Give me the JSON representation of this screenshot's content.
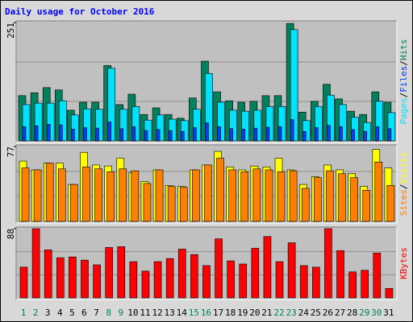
{
  "chart_data": {
    "type": "webalizer-daily",
    "title": "Daily usage for October 2016",
    "categories": [
      "1",
      "2",
      "3",
      "4",
      "5",
      "6",
      "7",
      "8",
      "9",
      "10",
      "11",
      "12",
      "13",
      "14",
      "15",
      "16",
      "17",
      "18",
      "19",
      "20",
      "21",
      "22",
      "23",
      "24",
      "25",
      "26",
      "27",
      "28",
      "29",
      "30",
      "31"
    ],
    "weekend_days": [
      0,
      1,
      7,
      8,
      14,
      15,
      21,
      22,
      28,
      29
    ],
    "weekend_color": "#00805c",
    "label_color": "#0000ff",
    "separator": "/",
    "panels": [
      {
        "ylim": [
          0,
          251
        ],
        "yticks": [
          251
        ],
        "series": [
          {
            "name": "Hits",
            "color": "#00805c",
            "values": [
              96,
              102,
              113,
              108,
              65,
              82,
              82,
              160,
              77,
              99,
              56,
              70,
              56,
              48,
              91,
              169,
              104,
              85,
              82,
              84,
              96,
              96,
              249,
              61,
              84,
              120,
              89,
              63,
              56,
              104,
              82
            ]
          },
          {
            "name": "Files",
            "color": "#0040ff",
            "values": [
              30,
              32,
              35,
              34,
              25,
              28,
              27,
              40,
              26,
              30,
              22,
              24,
              22,
              20,
              28,
              38,
              30,
              26,
              25,
              27,
              29,
              30,
              45,
              20,
              28,
              33,
              30,
              24,
              20,
              30,
              26
            ]
          },
          {
            "name": "Pages",
            "color": "#00e0ff",
            "values": [
              77,
              80,
              80,
              85,
              55,
              68,
              67,
              154,
              67,
              73,
              44,
              55,
              46,
              43,
              67,
              143,
              82,
              65,
              63,
              65,
              73,
              73,
              236,
              43,
              73,
              97,
              77,
              50,
              39,
              84,
              60
            ]
          }
        ]
      },
      {
        "ylim": [
          0,
          77
        ],
        "yticks": [
          77
        ],
        "series": [
          {
            "name": "Visits",
            "color": "#ffff00",
            "values": [
              62,
              53,
              60,
              60,
              38,
              71,
              58,
              57,
              65,
              50,
              41,
              53,
              37,
              36,
              53,
              58,
              72,
              56,
              53,
              57,
              56,
              65,
              53,
              38,
              46,
              58,
              53,
              49,
              36,
              74,
              55
            ]
          },
          {
            "name": "Sites",
            "color": "#ff8000",
            "values": [
              55,
              53,
              60,
              54,
              38,
              56,
              54,
              51,
              54,
              52,
              39,
              53,
              36,
              35,
              53,
              58,
              65,
              53,
              51,
              54,
              53,
              51,
              52,
              34,
              45,
              52,
              49,
              45,
              32,
              61,
              37
            ]
          }
        ]
      },
      {
        "ylim": [
          0,
          88
        ],
        "yticks": [
          88
        ],
        "series": [
          {
            "name": "KBytes",
            "color": "#ff0000",
            "values": [
              39,
              88,
              61,
              51,
              52,
              48,
              42,
              64,
              65,
              46,
              34,
              46,
              50,
              62,
              55,
              41,
              75,
              47,
              43,
              63,
              78,
              46,
              70,
              41,
              39,
              88,
              60,
              33,
              35,
              57,
              12
            ]
          }
        ]
      }
    ]
  }
}
